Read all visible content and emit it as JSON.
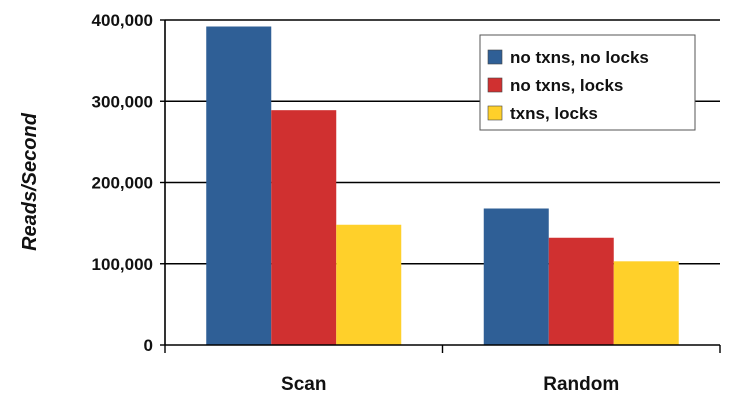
{
  "chart_data": {
    "type": "bar",
    "title": "",
    "xlabel": "",
    "ylabel": "Reads/Second",
    "categories": [
      "Scan",
      "Random"
    ],
    "series": [
      {
        "name": "no txns, no locks",
        "color": "#2f5f96",
        "values": [
          392000,
          168000
        ]
      },
      {
        "name": "no txns, locks",
        "color": "#d03030",
        "values": [
          289000,
          132000
        ]
      },
      {
        "name": "txns, locks",
        "color": "#ffd02a",
        "values": [
          148000,
          103000
        ]
      }
    ],
    "ylim": [
      0,
      400000
    ],
    "yticks": [
      0,
      100000,
      200000,
      300000,
      400000
    ],
    "ytick_labels": [
      "0",
      "100,000",
      "200,000",
      "300,000",
      "400,000"
    ],
    "grid": true,
    "legend_position": "top-right"
  }
}
